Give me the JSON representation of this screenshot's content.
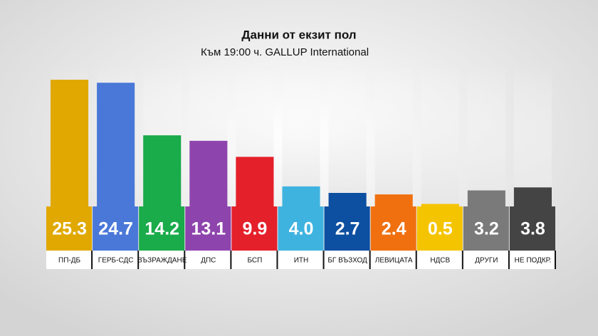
{
  "chart_data": {
    "type": "bar",
    "title": "Данни от екзит пол",
    "subtitle": "Към 19:00 ч.  GALLUP International",
    "categories": [
      "ПП-ДБ",
      "ГЕРБ-СДС",
      "ВЪЗРАЖДАНЕ",
      "ДПС",
      "БСП",
      "ИТН",
      "БГ ВЪЗХОД",
      "ЛЕВИЦАТА",
      "НДСВ",
      "ДРУГИ",
      "НЕ ПОДКР."
    ],
    "values": [
      25.3,
      24.7,
      14.2,
      13.1,
      9.9,
      4.0,
      2.7,
      2.4,
      0.5,
      3.2,
      3.8
    ],
    "value_labels": [
      "25.3",
      "24.7",
      "14.2",
      "13.1",
      "9.9",
      "4.0",
      "2.7",
      "2.4",
      "0.5",
      "3.2",
      "3.8"
    ],
    "colors": [
      "#e0a800",
      "#4a78d8",
      "#1aab4a",
      "#8e44ad",
      "#e4202a",
      "#3fb3e0",
      "#0d4fa0",
      "#f07010",
      "#f5c400",
      "#7a7a7a",
      "#444444"
    ]
  }
}
